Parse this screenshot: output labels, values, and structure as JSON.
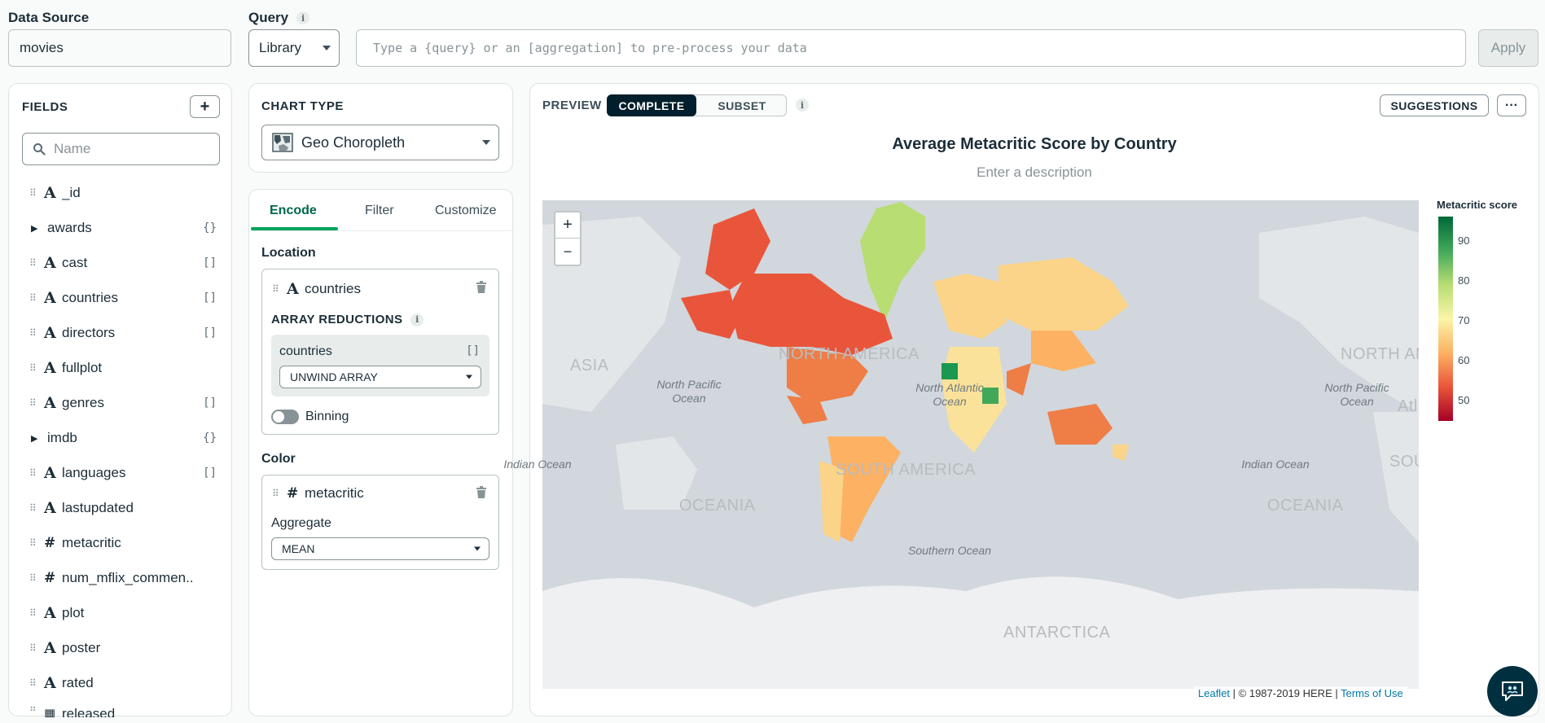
{
  "top": {
    "data_source_label": "Data Source",
    "data_source_value": "movies",
    "query_label": "Query",
    "query_mode": "Library",
    "query_placeholder": "Type a {query} or an [aggregation] to pre-process your data",
    "apply_label": "Apply"
  },
  "fields": {
    "title": "FIELDS",
    "search_placeholder": "Name",
    "items": [
      {
        "type": "A",
        "name": "_id",
        "badge": ""
      },
      {
        "type": "caret",
        "name": "awards",
        "badge": "{}"
      },
      {
        "type": "A",
        "name": "cast",
        "badge": "[]"
      },
      {
        "type": "A",
        "name": "countries",
        "badge": "[]"
      },
      {
        "type": "A",
        "name": "directors",
        "badge": "[]"
      },
      {
        "type": "A",
        "name": "fullplot",
        "badge": ""
      },
      {
        "type": "A",
        "name": "genres",
        "badge": "[]"
      },
      {
        "type": "caret",
        "name": "imdb",
        "badge": "{}"
      },
      {
        "type": "A",
        "name": "languages",
        "badge": "[]"
      },
      {
        "type": "A",
        "name": "lastupdated",
        "badge": ""
      },
      {
        "type": "#",
        "name": "metacritic",
        "badge": ""
      },
      {
        "type": "#",
        "name": "num_mflix_commen...",
        "badge": ""
      },
      {
        "type": "A",
        "name": "plot",
        "badge": ""
      },
      {
        "type": "A",
        "name": "poster",
        "badge": ""
      },
      {
        "type": "A",
        "name": "rated",
        "badge": ""
      },
      {
        "type": "date",
        "name": "released",
        "badge": ""
      }
    ]
  },
  "chart_type": {
    "title": "CHART TYPE",
    "value": "Geo Choropleth"
  },
  "encode": {
    "tabs": [
      "Encode",
      "Filter",
      "Customize"
    ],
    "location_label": "Location",
    "location_field": "countries",
    "array_reductions_label": "ARRAY REDUCTIONS",
    "array_field": "countries",
    "array_badge": "[]",
    "array_reduction": "UNWIND ARRAY",
    "binning_label": "Binning",
    "color_label": "Color",
    "color_field": "metacritic",
    "aggregate_label": "Aggregate",
    "aggregate_value": "MEAN"
  },
  "preview": {
    "label": "PREVIEW",
    "tab_complete": "COMPLETE",
    "tab_subset": "SUBSET",
    "suggestions": "SUGGESTIONS",
    "more": "···"
  },
  "chart_data": {
    "type": "choropleth",
    "title": "Average Metacritic Score by Country",
    "subtitle": "Enter a description",
    "legend_title": "Metacritic score",
    "legend_ticks": [
      90,
      80,
      70,
      60,
      50
    ],
    "color_scale": [
      "#a50026",
      "#e9553a",
      "#fdb163",
      "#fbf5a8",
      "#b7dd73",
      "#41a85a",
      "#006837"
    ],
    "map_labels": {
      "oceans": [
        "North Pacific Ocean",
        "North Atlantic Ocean",
        "Indian Ocean",
        "Southern Ocean",
        "North Pacific Ocean",
        "Indian Ocean"
      ],
      "continents": [
        "ASIA",
        "NORTH AMERICA",
        "SOUTH AMERICA",
        "OCEANIA",
        "OCEANIA",
        "ANTARCTICA",
        "NORTH AMERICA",
        "SOUTH",
        "Atla"
      ]
    },
    "attribution": {
      "leaflet": "Leaflet",
      "copyright": " | © 1987-2019 HERE | ",
      "terms": "Terms of Use"
    },
    "zoom_in": "+",
    "zoom_out": "−"
  },
  "colors": {
    "accent_green": "#00a35c",
    "dark_tab": "#001e2b"
  }
}
